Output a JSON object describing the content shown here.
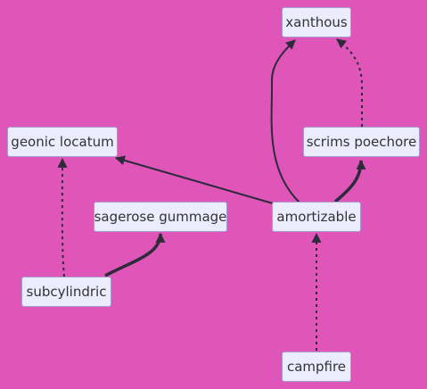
{
  "diagram": {
    "background": "#e055b8",
    "node_fill": "#ececff",
    "node_border": "#a69ad6",
    "edge_color": "#2b2b3b",
    "nodes": {
      "xanthous": "xanthous",
      "geonic_locatum": "geonic locatum",
      "scrims_poechore": "scrims poechore",
      "sagerose_gummage": "sagerose gummage",
      "amortizable": "amortizable",
      "subcylindric": "subcylindric",
      "campfire": "campfire"
    },
    "edges": [
      {
        "from": "amortizable",
        "to": "xanthous",
        "style": "solid"
      },
      {
        "from": "scrims_poechore",
        "to": "xanthous",
        "style": "dotted"
      },
      {
        "from": "amortizable",
        "to": "scrims_poechore",
        "style": "thick"
      },
      {
        "from": "amortizable",
        "to": "geonic_locatum",
        "style": "solid"
      },
      {
        "from": "subcylindric",
        "to": "geonic_locatum",
        "style": "dotted"
      },
      {
        "from": "subcylindric",
        "to": "sagerose_gummage",
        "style": "thick"
      },
      {
        "from": "campfire",
        "to": "amortizable",
        "style": "dotted"
      }
    ]
  }
}
